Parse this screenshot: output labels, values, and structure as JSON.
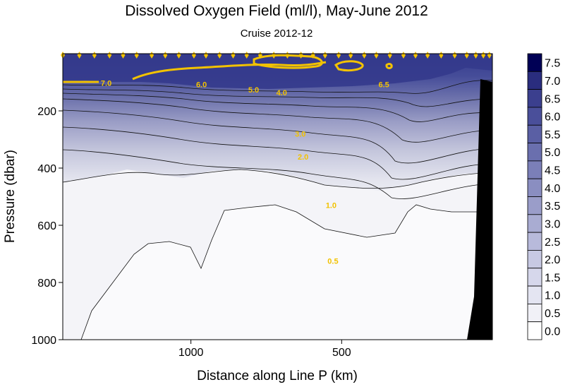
{
  "chart_data": {
    "type": "heatmap",
    "title": "Dissolved Oxygen Field  (ml/l),  May-June 2012",
    "subtitle": "Cruise 2012-12",
    "xlabel": "Distance along Line P  (km)",
    "ylabel": "Pressure  (dbar)",
    "x_ticks": [
      {
        "value": 1000,
        "label": "1000"
      },
      {
        "value": 500,
        "label": "500"
      }
    ],
    "y_ticks": [
      {
        "value": 200,
        "label": "200"
      },
      {
        "value": 400,
        "label": "400"
      },
      {
        "value": 600,
        "label": "600"
      },
      {
        "value": 800,
        "label": "800"
      },
      {
        "value": 1000,
        "label": "1000"
      }
    ],
    "xlim": [
      1425,
      0
    ],
    "ylim": [
      1000,
      0
    ],
    "colorbar_levels": [
      "7.5",
      "7.0",
      "6.5",
      "6.0",
      "5.5",
      "5.0",
      "4.5",
      "4.0",
      "3.5",
      "3.0",
      "2.5",
      "2.0",
      "1.5",
      "1.0",
      "0.5",
      "0.0"
    ],
    "contour_labels": [
      {
        "text": "7.0",
        "x": 1281,
        "y": 103
      },
      {
        "text": "6.0",
        "x": 965,
        "y": 108
      },
      {
        "text": "5.0",
        "x": 792,
        "y": 126
      },
      {
        "text": "4.0",
        "x": 699,
        "y": 136
      },
      {
        "text": "6.5",
        "x": 360,
        "y": 108
      },
      {
        "text": "3.0",
        "x": 637,
        "y": 280
      },
      {
        "text": "2.0",
        "x": 628,
        "y": 360
      },
      {
        "text": "1.0",
        "x": 535,
        "y": 530
      },
      {
        "text": "0.5",
        "x": 529,
        "y": 725
      }
    ],
    "stations_km": [
      1425,
      1370,
      1320,
      1270,
      1225,
      1180,
      1130,
      1085,
      1040,
      990,
      950,
      905,
      860,
      815,
      770,
      725,
      680,
      635,
      595,
      555,
      510,
      470,
      425,
      385,
      340,
      295,
      255,
      215,
      170,
      125,
      85,
      55,
      30,
      10
    ]
  },
  "colors": {
    "high_oxygen": "#0a0f5e",
    "low_oxygen": "#ffffff",
    "contour_highlight": "#f2c200",
    "station_marker": "#f2c200",
    "land_mask": "#000000"
  }
}
